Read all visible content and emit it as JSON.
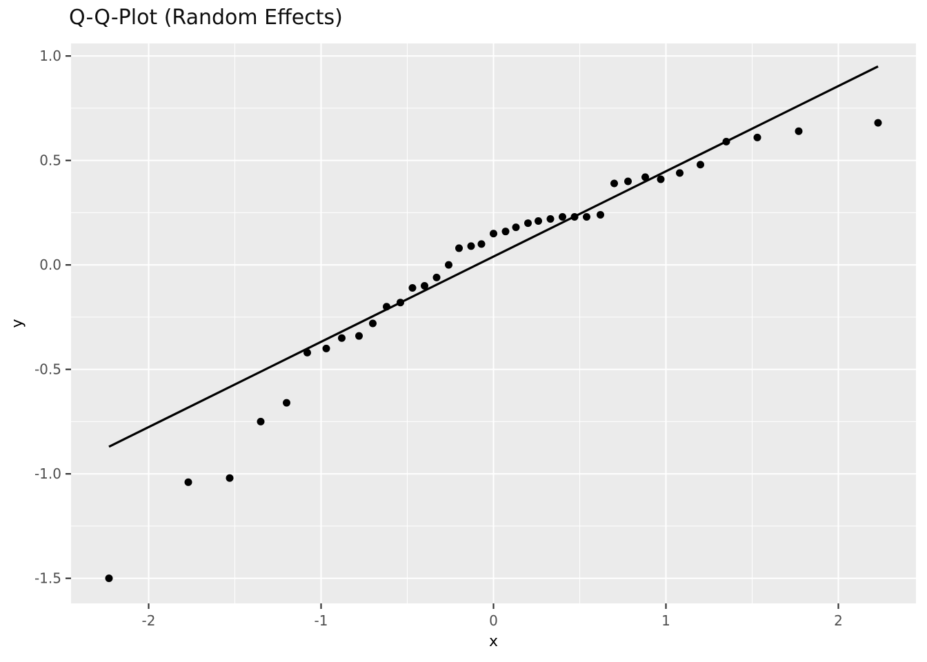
{
  "chart_data": {
    "type": "scatter",
    "title": "Q-Q-Plot (Random Effects)",
    "xlabel": "x",
    "ylabel": "y",
    "xlim": [
      -2.45,
      2.45
    ],
    "ylim": [
      -1.62,
      1.06
    ],
    "grid": true,
    "legend_position": "none",
    "x_ticks": [
      -2,
      -1,
      0,
      1,
      2
    ],
    "x_tick_labels": [
      "-2",
      "-1",
      "0",
      "1",
      "2"
    ],
    "y_ticks": [
      1.0,
      0.5,
      0.0,
      -0.5,
      -1.0,
      -1.5
    ],
    "y_tick_labels": [
      "1.0",
      "0.5",
      "0.0",
      "-0.5",
      "-1.0",
      "-1.5"
    ],
    "x_minor_ticks": [
      -1.5,
      -0.5,
      0.5,
      1.5
    ],
    "y_minor_ticks": [
      0.75,
      0.25,
      -0.25,
      -0.75,
      -1.25
    ],
    "points": [
      [
        -2.23,
        -1.5
      ],
      [
        -1.77,
        -1.04
      ],
      [
        -1.53,
        -1.02
      ],
      [
        -1.35,
        -0.75
      ],
      [
        -1.2,
        -0.66
      ],
      [
        -1.08,
        -0.42
      ],
      [
        -0.97,
        -0.4
      ],
      [
        -0.88,
        -0.35
      ],
      [
        -0.78,
        -0.34
      ],
      [
        -0.7,
        -0.28
      ],
      [
        -0.62,
        -0.2
      ],
      [
        -0.54,
        -0.18
      ],
      [
        -0.47,
        -0.11
      ],
      [
        -0.4,
        -0.1
      ],
      [
        -0.33,
        -0.06
      ],
      [
        -0.26,
        0.0
      ],
      [
        -0.2,
        0.08
      ],
      [
        -0.13,
        0.09
      ],
      [
        -0.07,
        0.1
      ],
      [
        0.0,
        0.15
      ],
      [
        0.07,
        0.16
      ],
      [
        0.13,
        0.18
      ],
      [
        0.2,
        0.2
      ],
      [
        0.26,
        0.21
      ],
      [
        0.33,
        0.22
      ],
      [
        0.4,
        0.23
      ],
      [
        0.47,
        0.23
      ],
      [
        0.54,
        0.23
      ],
      [
        0.62,
        0.24
      ],
      [
        0.7,
        0.39
      ],
      [
        0.78,
        0.4
      ],
      [
        0.88,
        0.42
      ],
      [
        0.97,
        0.41
      ],
      [
        1.08,
        0.44
      ],
      [
        1.2,
        0.48
      ],
      [
        1.35,
        0.59
      ],
      [
        1.53,
        0.61
      ],
      [
        1.77,
        0.64
      ],
      [
        2.23,
        0.68
      ]
    ],
    "reference_line": {
      "x1": -2.23,
      "y1": -0.87,
      "x2": 2.23,
      "y2": 0.95
    },
    "colors": {
      "panel_background": "#EBEBEB",
      "grid_major": "#FFFFFF",
      "grid_minor": "#FFFFFF",
      "point": "#000000",
      "line": "#000000",
      "tick_label": "#4D4D4D",
      "tick_mark": "#333333",
      "axis_title": "#000000",
      "title": "#0d0d0d"
    }
  }
}
